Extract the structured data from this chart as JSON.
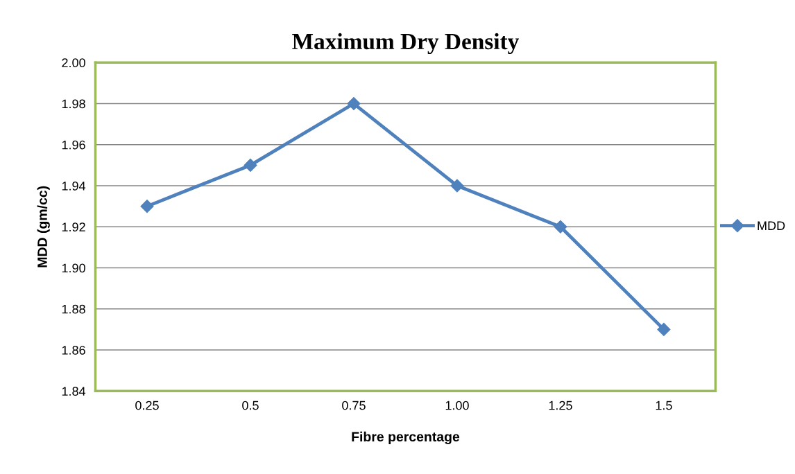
{
  "chart_data": {
    "type": "line",
    "title": "Maximum Dry Density",
    "xlabel": "Fibre percentage",
    "ylabel": "MDD (gm/cc)",
    "categories": [
      "0.25",
      "0.5",
      "0.75",
      "1.00",
      "1.25",
      "1.5"
    ],
    "series": [
      {
        "name": "MDD",
        "color": "#4f81bd",
        "values": [
          1.93,
          1.95,
          1.98,
          1.94,
          1.92,
          1.87
        ]
      }
    ],
    "ylim": [
      1.84,
      2.0
    ],
    "yticks": [
      {
        "value": 1.84,
        "label": "1.84"
      },
      {
        "value": 1.86,
        "label": "1.86"
      },
      {
        "value": 1.88,
        "label": "1.88"
      },
      {
        "value": 1.9,
        "label": "1.90"
      },
      {
        "value": 1.92,
        "label": "1.92"
      },
      {
        "value": 1.94,
        "label": "1.94"
      },
      {
        "value": 1.96,
        "label": "1.96"
      },
      {
        "value": 1.98,
        "label": "1.98"
      },
      {
        "value": 2.0,
        "label": "2.00"
      }
    ],
    "grid": "y",
    "legend": "right",
    "marker": "diamond",
    "line_style": "solid"
  }
}
